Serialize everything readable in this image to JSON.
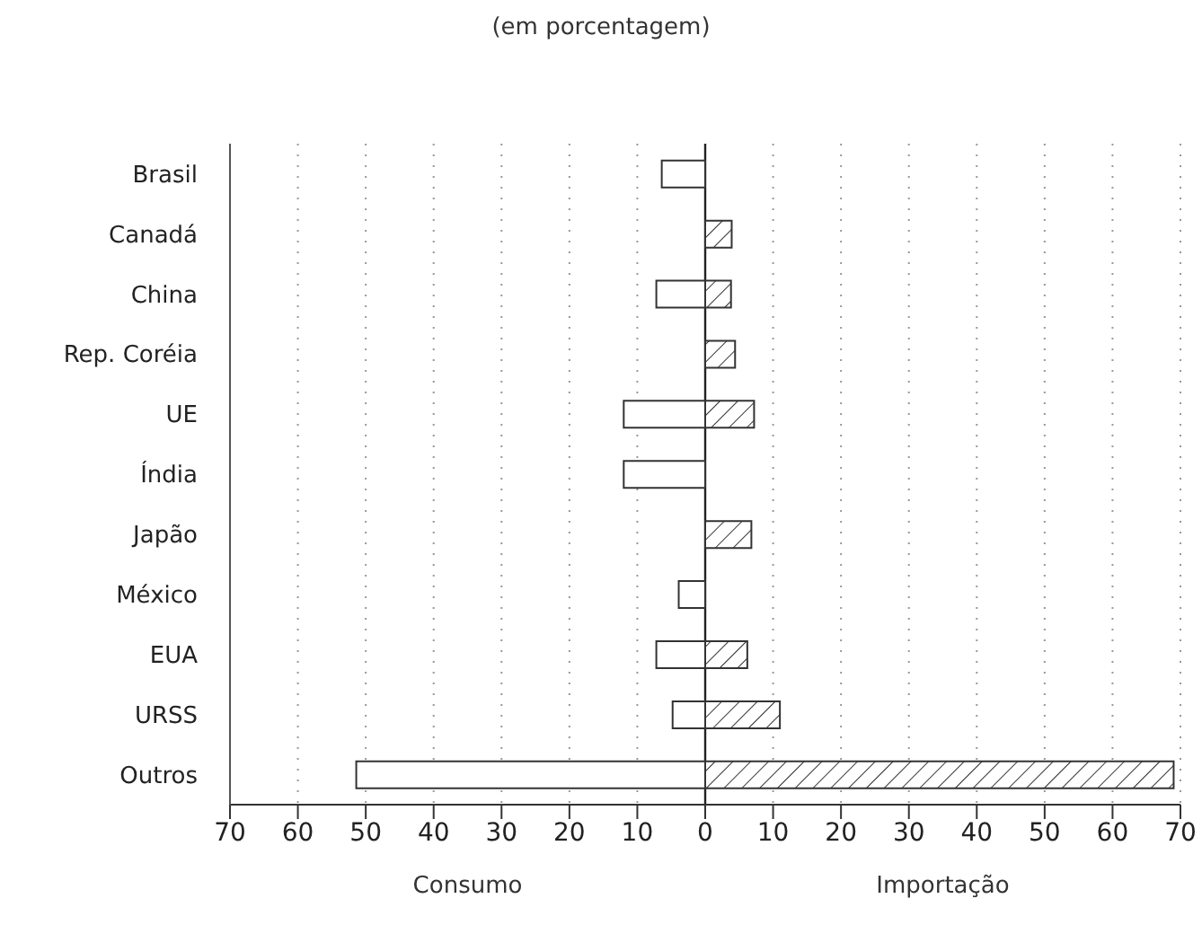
{
  "chart_data": {
    "type": "bar",
    "orientation": "horizontal",
    "title": "(em porcentagem)",
    "categories": [
      "Brasil",
      "Canadá",
      "China",
      "Rep. Coréia",
      "UE",
      "Índia",
      "Japão",
      "México",
      "EUA",
      "URSS",
      "Outros"
    ],
    "series": [
      {
        "color": "#ffffff",
        "values": [
          -6.4,
          0,
          -7.2,
          0,
          -12,
          -12,
          0,
          -3.9,
          -7.2,
          -4.8,
          -51.4
        ]
      },
      {
        "color": "#333333",
        "values": [
          0,
          3.9,
          3.8,
          4.4,
          7.2,
          0,
          6.8,
          0,
          6.2,
          11,
          69
        ]
      }
    ],
    "xlim": [
      -70,
      70
    ],
    "xticks": [
      {
        "value": -70,
        "label": "70"
      },
      {
        "value": -60,
        "label": "60"
      },
      {
        "value": -50,
        "label": "50"
      },
      {
        "value": -40,
        "label": "40"
      },
      {
        "value": -30,
        "label": "30"
      },
      {
        "value": -20,
        "label": "20"
      },
      {
        "value": -10,
        "label": "10"
      },
      0,
      10,
      20,
      30,
      40,
      50,
      60,
      70
    ],
    "grid": "x",
    "annotations": [
      "Consumo",
      "Importação"
    ]
  }
}
